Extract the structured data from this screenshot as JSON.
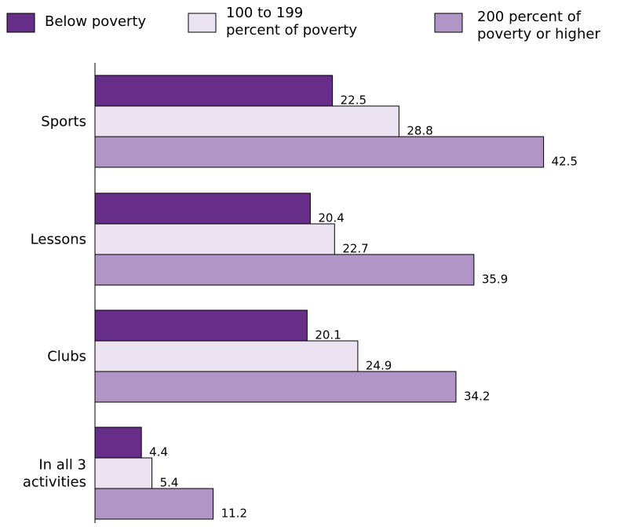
{
  "chart_data": {
    "type": "bar",
    "orientation": "horizontal",
    "categories": [
      "Sports",
      "Lessons",
      "Clubs",
      "In all 3 activities"
    ],
    "category_label_lines": [
      [
        "Sports"
      ],
      [
        "Lessons"
      ],
      [
        "Clubs"
      ],
      [
        "In all 3",
        "activities"
      ]
    ],
    "series": [
      {
        "name": "Below poverty",
        "name_lines": [
          "Below poverty"
        ],
        "color": "#662d89",
        "values": [
          22.5,
          20.4,
          20.1,
          4.4
        ]
      },
      {
        "name": "100 to 199 percent of poverty",
        "name_lines": [
          "100 to 199",
          "percent of poverty"
        ],
        "color": "#ebe3f1",
        "values": [
          28.8,
          22.7,
          24.9,
          5.4
        ]
      },
      {
        "name": "200 percent of poverty or higher",
        "name_lines": [
          "200 percent of",
          "poverty or higher"
        ],
        "color": "#b195c6",
        "values": [
          42.5,
          35.9,
          34.2,
          11.2
        ]
      }
    ],
    "title": "",
    "xlabel": "",
    "ylabel": "",
    "xlim": [
      0,
      50
    ],
    "grid": false,
    "legend_position": "top"
  }
}
